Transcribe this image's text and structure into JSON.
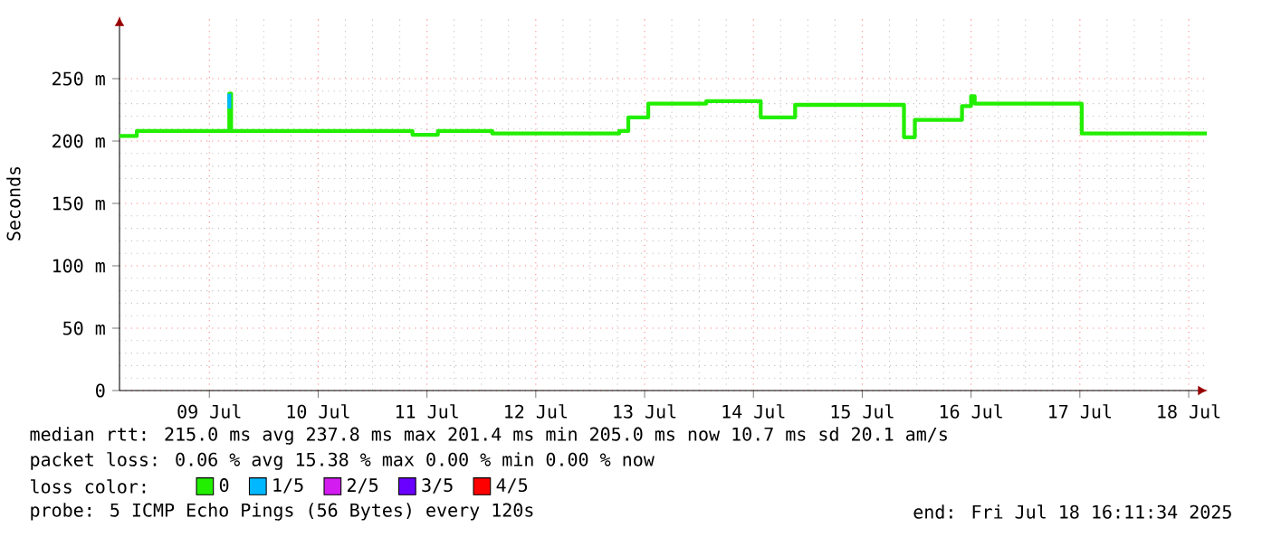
{
  "chart_data": {
    "type": "step",
    "ylabel": "Seconds",
    "legend_title": "loss color:",
    "legend": "bottom",
    "grid": true,
    "marker": "none",
    "line_style": "solid",
    "xlim": [
      "2025-07-08T16:11",
      "2025-07-18T16:11"
    ],
    "xticks": [
      {
        "value": "2025-07-09T12:00",
        "label": "09 Jul"
      },
      {
        "value": "2025-07-10T12:00",
        "label": "10 Jul"
      },
      {
        "value": "2025-07-11T12:00",
        "label": "11 Jul"
      },
      {
        "value": "2025-07-12T12:00",
        "label": "12 Jul"
      },
      {
        "value": "2025-07-13T12:00",
        "label": "13 Jul"
      },
      {
        "value": "2025-07-14T12:00",
        "label": "14 Jul"
      },
      {
        "value": "2025-07-15T12:00",
        "label": "15 Jul"
      },
      {
        "value": "2025-07-16T12:00",
        "label": "16 Jul"
      },
      {
        "value": "2025-07-17T12:00",
        "label": "17 Jul"
      },
      {
        "value": "2025-07-18T12:00",
        "label": "18 Jul"
      }
    ],
    "ylim": [
      0,
      300
    ],
    "yticks": [
      0,
      {
        "value": 50,
        "label": "50 m"
      },
      {
        "value": 100,
        "label": "100 m"
      },
      {
        "value": 150,
        "label": "150 m"
      },
      {
        "value": 200,
        "label": "200 m"
      },
      {
        "value": 250,
        "label": "250 m"
      }
    ],
    "series": [
      {
        "name": "0",
        "color": "#22ee00",
        "x": [
          "2025-07-08T16:11",
          "2025-07-08T20:00",
          "2025-07-09T16:24",
          "2025-07-09T16:48",
          "2025-07-11T08:48",
          "2025-07-11T14:24",
          "2025-07-12T02:24",
          "2025-07-13T06:24",
          "2025-07-13T08:24",
          "2025-07-13T12:48",
          "2025-07-14T01:36",
          "2025-07-14T13:36",
          "2025-07-14T21:12",
          "2025-07-15T21:12",
          "2025-07-15T23:36",
          "2025-07-16T10:00",
          "2025-07-16T12:00",
          "2025-07-16T12:48",
          "2025-07-17T12:24",
          "2025-07-18T16:00"
        ],
        "values": [
          204,
          208,
          238,
          208,
          205,
          208,
          206,
          208,
          219,
          230,
          232,
          219,
          229,
          203,
          217,
          228,
          236,
          230,
          206,
          206
        ]
      },
      {
        "name": "1/5",
        "type": "line",
        "color": "#00b8ff",
        "x": [
          "2025-07-09T16:24",
          "2025-07-09T16:24"
        ],
        "values": [
          226,
          238
        ]
      },
      {
        "name": "2/5",
        "color": "#d21cf0"
      },
      {
        "name": "3/5",
        "color": "#6a00ff"
      },
      {
        "name": "4/5",
        "color": "#ff0000"
      }
    ],
    "annotations": [
      "median rtt:  215.0 ms avg  237.8 ms max  201.4 ms min  205.0 ms now  10.7 ms sd  20.1  am/s",
      "packet loss: 0.06 % avg  15.38 % max  0.00 % min  0.00 % now",
      "probe:       5 ICMP Echo Pings (56 Bytes) every 120s",
      "end: Fri Jul 18 16:11:34 2025"
    ]
  }
}
